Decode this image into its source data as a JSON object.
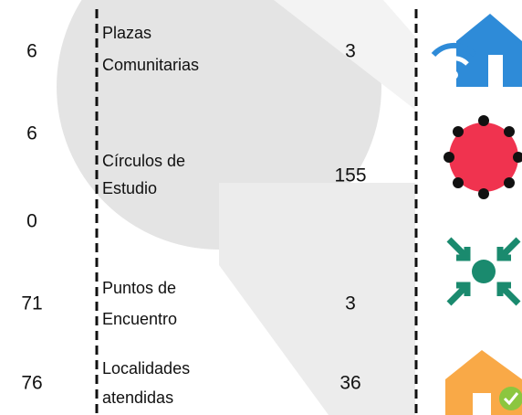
{
  "left_values": [
    6,
    6,
    0,
    71,
    76
  ],
  "items": [
    {
      "label_lines": [
        "Plazas",
        "Comunitarias"
      ],
      "value": 3
    },
    {
      "label_lines": [
        "Círculos de",
        "Estudio"
      ],
      "value": 155
    },
    {
      "label_lines": [
        "Puntos de",
        "Encuentro"
      ],
      "value": 3
    },
    {
      "label_lines": [
        "Localidades",
        "atendidas"
      ],
      "value": 36
    }
  ]
}
